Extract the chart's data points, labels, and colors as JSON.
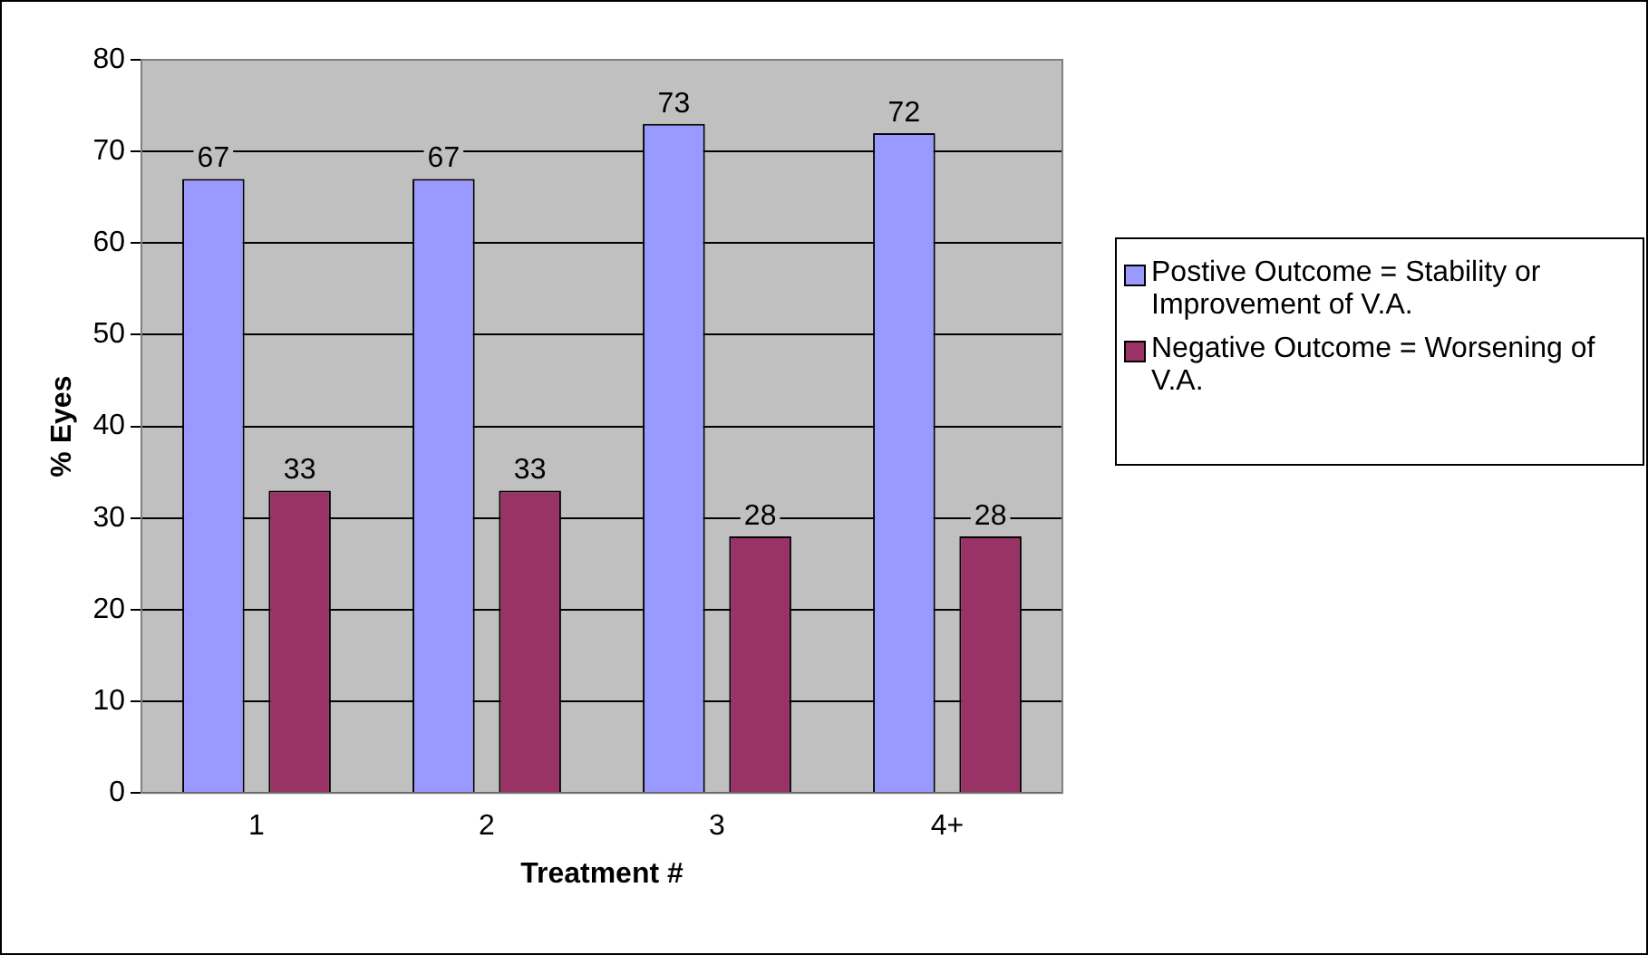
{
  "chart_data": {
    "type": "bar",
    "xlabel": "Treatment #",
    "ylabel": "% Eyes",
    "categories": [
      "1",
      "2",
      "3",
      "4+"
    ],
    "series": [
      {
        "name": "Postive Outcome = Stability or Improvement of V.A.",
        "color": "#9999ff",
        "values": [
          67,
          67,
          73,
          72
        ]
      },
      {
        "name": "Negative Outcome = Worsening of V.A.",
        "color": "#993366",
        "values": [
          33,
          33,
          28,
          28
        ]
      }
    ],
    "ylim": [
      0,
      80
    ],
    "yticks": [
      0,
      10,
      20,
      30,
      40,
      50,
      60,
      70,
      80
    ],
    "grid": "y",
    "legend": "right",
    "data_labels": true
  }
}
